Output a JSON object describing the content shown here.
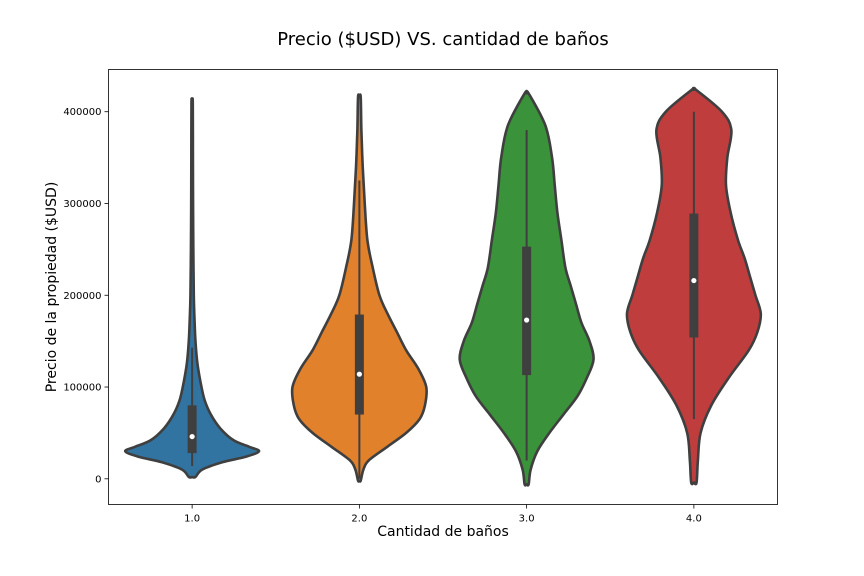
{
  "chart_data": {
    "type": "violin",
    "title": "Precio ($USD) VS. cantidad de baños",
    "xlabel": "Cantidad de baños",
    "ylabel": "Precio de la propiedad ($USD)",
    "ylim": [
      -28000,
      446000
    ],
    "yticks": [
      0,
      100000,
      200000,
      300000,
      400000
    ],
    "ytick_labels": [
      "0",
      "100000",
      "200000",
      "300000",
      "400000"
    ],
    "categories": [
      "1.0",
      "2.0",
      "3.0",
      "4.0"
    ],
    "grid": false,
    "legend": "none",
    "series": [
      {
        "category": "1.0",
        "color": "#3274a1",
        "min": 2000,
        "max": 410000,
        "q1": 28000,
        "median": 46000,
        "q3": 80000,
        "whisker_low": 14000,
        "whisker_high": 143000,
        "density_y": [
          2000,
          10000,
          18000,
          24000,
          30000,
          35000,
          42000,
          55000,
          70000,
          85000,
          100000,
          125000,
          150000,
          175000,
          200000,
          250000,
          300000,
          350000,
          410000
        ],
        "density_w": [
          0.05,
          0.15,
          0.45,
          0.8,
          1.0,
          0.85,
          0.62,
          0.42,
          0.28,
          0.19,
          0.14,
          0.08,
          0.05,
          0.035,
          0.025,
          0.018,
          0.014,
          0.012,
          0.01
        ]
      },
      {
        "category": "2.0",
        "color": "#e1812c",
        "min": -2000,
        "max": 416000,
        "q1": 70000,
        "median": 114000,
        "q3": 179000,
        "whisker_low": 0,
        "whisker_high": 325000,
        "density_y": [
          -2000,
          10000,
          20000,
          35000,
          50000,
          65000,
          80000,
          100000,
          120000,
          140000,
          160000,
          180000,
          200000,
          230000,
          260000,
          300000,
          340000,
          380000,
          416000
        ],
        "density_w": [
          0.02,
          0.06,
          0.14,
          0.42,
          0.7,
          0.9,
          0.98,
          1.0,
          0.88,
          0.7,
          0.56,
          0.42,
          0.3,
          0.2,
          0.12,
          0.08,
          0.05,
          0.03,
          0.02
        ]
      },
      {
        "category": "3.0",
        "color": "#3a923a",
        "min": -6000,
        "max": 420000,
        "q1": 113000,
        "median": 173000,
        "q3": 253000,
        "whisker_low": 20000,
        "whisker_high": 380000,
        "density_y": [
          -6000,
          10000,
          30000,
          50000,
          70000,
          90000,
          110000,
          130000,
          150000,
          170000,
          190000,
          210000,
          230000,
          260000,
          290000,
          320000,
          350000,
          385000,
          420000
        ],
        "density_w": [
          0.03,
          0.06,
          0.16,
          0.34,
          0.55,
          0.76,
          0.9,
          1.0,
          0.94,
          0.82,
          0.74,
          0.66,
          0.58,
          0.52,
          0.46,
          0.42,
          0.38,
          0.28,
          0.03
        ]
      },
      {
        "category": "4.0",
        "color": "#c03d3e",
        "min": -4000,
        "max": 424000,
        "q1": 154000,
        "median": 216000,
        "q3": 289000,
        "whisker_low": 65000,
        "whisker_high": 400000,
        "density_y": [
          -4000,
          20000,
          50000,
          80000,
          110000,
          140000,
          160000,
          180000,
          200000,
          220000,
          240000,
          260000,
          290000,
          320000,
          350000,
          380000,
          400000,
          424000
        ],
        "density_w": [
          0.04,
          0.06,
          0.1,
          0.26,
          0.52,
          0.82,
          0.95,
          1.0,
          0.92,
          0.84,
          0.76,
          0.66,
          0.55,
          0.48,
          0.5,
          0.56,
          0.42,
          0.03
        ]
      }
    ]
  }
}
